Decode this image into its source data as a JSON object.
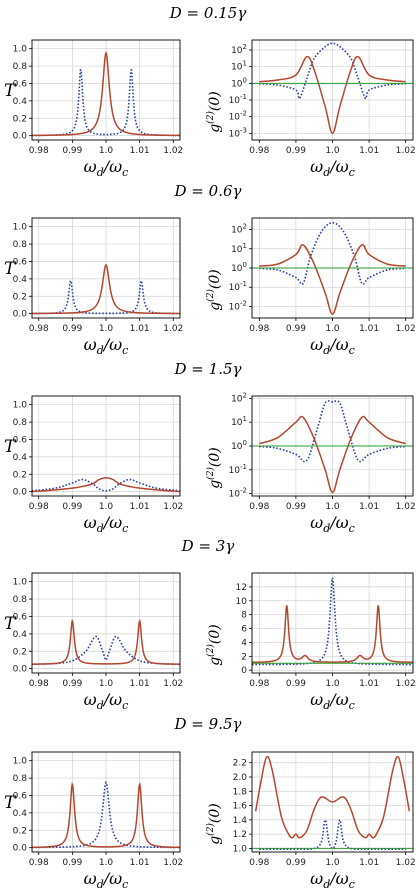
{
  "figure": {
    "colors": {
      "blue_dotted": "#2b43a6",
      "red": "#b5472e",
      "green": "#2a9a2a",
      "grid": "#d2d2d2",
      "frame": "#000000"
    },
    "panels_rows": [
      {
        "title": "D = 0.15γ"
      },
      {
        "title": "D = 0.6γ"
      },
      {
        "title": "D = 1.5γ"
      },
      {
        "title": "D = 3γ"
      },
      {
        "title": "D = 9.5γ"
      }
    ]
  },
  "chart_data": [
    {
      "row": 0,
      "side": "left",
      "type": "line",
      "title": "D = 0.15γ",
      "xlabel": "ωd/ωc",
      "ylabel": "T",
      "xlim": [
        0.978,
        1.022
      ],
      "ylim": [
        -0.05,
        1.1
      ],
      "xticks": [
        "0.98",
        "0.99",
        "1.0",
        "1.01",
        "1.02"
      ],
      "yticks": [
        "0.0",
        "0.2",
        "0.4",
        "0.6",
        "0.8",
        "1.0"
      ],
      "ytick_values": [
        0,
        0.2,
        0.4,
        0.6,
        0.8,
        1.0
      ],
      "series": [
        {
          "style": "dotted",
          "color": "blue",
          "peaks": [
            [
              0.9925,
              0.76,
              0.0007
            ],
            [
              1.0075,
              0.76,
              0.0007
            ]
          ],
          "base": 0.0
        },
        {
          "style": "solid",
          "color": "red",
          "peaks": [
            [
              1.0,
              0.95,
              0.0012
            ]
          ],
          "base": 0.0
        }
      ]
    },
    {
      "row": 0,
      "side": "right",
      "type": "line",
      "scale": "log",
      "title": "D = 0.15γ",
      "xlabel": "ωd/ωc",
      "ylabel": "g(2)(0)",
      "xlim": [
        0.978,
        1.022
      ],
      "ylim_exp": [
        -3.4,
        2.6
      ],
      "xticks": [
        "0.98",
        "0.99",
        "1.0",
        "1.01",
        "1.02"
      ],
      "yticks": [
        "10^2",
        "10^1",
        "10^0",
        "10^-1",
        "10^-2",
        "10^-3"
      ],
      "ytick_exps": [
        2,
        1,
        0,
        -1,
        -2,
        -3
      ],
      "series": [
        {
          "style": "dotted",
          "color": "blue",
          "x": [
            0.98,
            0.985,
            0.99,
            0.991,
            0.993,
            0.995,
            0.998,
            1.0,
            1.002,
            1.005,
            1.007,
            1.009,
            1.01,
            1.015,
            1.02
          ],
          "y_exp": [
            -0.02,
            -0.1,
            -0.4,
            -0.9,
            0.3,
            1.5,
            2.2,
            2.4,
            2.2,
            1.5,
            0.3,
            -0.9,
            -0.4,
            -0.1,
            -0.02
          ]
        },
        {
          "style": "solid",
          "color": "red",
          "x": [
            0.98,
            0.985,
            0.99,
            0.993,
            0.995,
            0.998,
            1.0,
            1.002,
            1.005,
            1.007,
            1.01,
            1.015,
            1.02
          ],
          "y_exp": [
            0.1,
            0.2,
            0.5,
            1.6,
            0.8,
            -1.4,
            -3.0,
            -1.4,
            0.8,
            1.6,
            0.5,
            0.2,
            0.1
          ]
        },
        {
          "style": "solid",
          "color": "green",
          "x": [
            0.978,
            1.022
          ],
          "y_exp": [
            0,
            0
          ]
        }
      ]
    },
    {
      "row": 1,
      "side": "left",
      "type": "line",
      "title": "D = 0.6γ",
      "xlabel": "ωd/ωc",
      "ylabel": "T",
      "xlim": [
        0.978,
        1.022
      ],
      "ylim": [
        -0.05,
        1.1
      ],
      "xticks": [
        "0.98",
        "0.99",
        "1.0",
        "1.01",
        "1.02"
      ],
      "yticks": [
        "0.0",
        "0.2",
        "0.4",
        "0.6",
        "0.8",
        "1.0"
      ],
      "ytick_values": [
        0,
        0.2,
        0.4,
        0.6,
        0.8,
        1.0
      ],
      "series": [
        {
          "style": "dotted",
          "color": "blue",
          "peaks": [
            [
              0.9895,
              0.38,
              0.0007
            ],
            [
              1.0105,
              0.38,
              0.0007
            ]
          ],
          "base": 0.0
        },
        {
          "style": "solid",
          "color": "red",
          "peaks": [
            [
              1.0,
              0.56,
              0.0013
            ]
          ],
          "base": 0.0
        }
      ]
    },
    {
      "row": 1,
      "side": "right",
      "type": "line",
      "scale": "log",
      "title": "D = 0.6γ",
      "xlabel": "ωd/ωc",
      "ylabel": "g(2)(0)",
      "xlim": [
        0.978,
        1.022
      ],
      "ylim_exp": [
        -2.6,
        2.6
      ],
      "xticks": [
        "0.98",
        "0.99",
        "1.0",
        "1.01",
        "1.02"
      ],
      "yticks": [
        "10^2",
        "10^1",
        "10^0",
        "10^-1",
        "10^-2"
      ],
      "ytick_exps": [
        2,
        1,
        0,
        -1,
        -2
      ],
      "series": [
        {
          "style": "dotted",
          "color": "blue",
          "x": [
            0.98,
            0.985,
            0.99,
            0.992,
            0.994,
            0.997,
            1.0,
            1.003,
            1.006,
            1.008,
            1.01,
            1.015,
            1.02
          ],
          "y_exp": [
            -0.02,
            -0.1,
            -0.5,
            -0.8,
            0.6,
            1.9,
            2.35,
            1.9,
            0.6,
            -0.8,
            -0.5,
            -0.1,
            -0.02
          ]
        },
        {
          "style": "solid",
          "color": "red",
          "x": [
            0.98,
            0.985,
            0.99,
            0.992,
            0.995,
            0.998,
            1.0,
            1.002,
            1.005,
            1.008,
            1.01,
            1.015,
            1.02
          ],
          "y_exp": [
            0.1,
            0.2,
            0.7,
            1.2,
            0.2,
            -1.3,
            -2.4,
            -1.3,
            0.2,
            1.2,
            0.7,
            0.2,
            0.1
          ]
        },
        {
          "style": "solid",
          "color": "green",
          "x": [
            0.978,
            1.022
          ],
          "y_exp": [
            0,
            0
          ]
        }
      ]
    },
    {
      "row": 2,
      "side": "left",
      "type": "line",
      "title": "D = 1.5γ",
      "xlabel": "ωd/ωc",
      "ylabel": "T",
      "xlim": [
        0.978,
        1.022
      ],
      "ylim": [
        -0.05,
        1.1
      ],
      "xticks": [
        "0.98",
        "0.99",
        "1.0",
        "1.01",
        "1.02"
      ],
      "yticks": [
        "0.0",
        "0.2",
        "0.4",
        "0.6",
        "0.8",
        "1.0"
      ],
      "ytick_values": [
        0,
        0.2,
        0.4,
        0.6,
        0.8,
        1.0
      ],
      "series": [
        {
          "style": "dotted",
          "color": "blue",
          "x": [
            0.978,
            0.985,
            0.99,
            0.993,
            0.996,
            0.998,
            1.0,
            1.002,
            1.004,
            1.007,
            1.01,
            1.015,
            1.022
          ],
          "y": [
            0.01,
            0.04,
            0.1,
            0.14,
            0.09,
            0.03,
            0.01,
            0.03,
            0.09,
            0.14,
            0.1,
            0.04,
            0.01
          ]
        },
        {
          "style": "solid",
          "color": "red",
          "x": [
            0.978,
            0.985,
            0.99,
            0.993,
            0.996,
            0.998,
            1.0,
            1.002,
            1.004,
            1.007,
            1.01,
            1.015,
            1.022
          ],
          "y": [
            0.0,
            0.02,
            0.04,
            0.06,
            0.09,
            0.14,
            0.16,
            0.14,
            0.09,
            0.06,
            0.04,
            0.02,
            0.0
          ]
        }
      ]
    },
    {
      "row": 2,
      "side": "right",
      "type": "line",
      "scale": "log",
      "title": "D = 1.5γ",
      "xlabel": "ωd/ωc",
      "ylabel": "g(2)(0)",
      "xlim": [
        0.978,
        1.022
      ],
      "ylim_exp": [
        -2.1,
        2.1
      ],
      "xticks": [
        "0.98",
        "0.99",
        "1.0",
        "1.01",
        "1.02"
      ],
      "yticks": [
        "10^2",
        "10^1",
        "10^0",
        "10^-1",
        "10^-2"
      ],
      "ytick_exps": [
        2,
        1,
        0,
        -1,
        -2
      ],
      "series": [
        {
          "style": "dotted",
          "color": "blue",
          "x": [
            0.98,
            0.985,
            0.99,
            0.993,
            0.996,
            0.998,
            1.0,
            1.002,
            1.004,
            1.007,
            1.01,
            1.015,
            1.02
          ],
          "y_exp": [
            -0.02,
            -0.1,
            -0.35,
            -0.6,
            0.8,
            1.8,
            1.85,
            1.8,
            0.8,
            -0.6,
            -0.35,
            -0.1,
            -0.02
          ]
        },
        {
          "style": "solid",
          "color": "red",
          "x": [
            0.98,
            0.985,
            0.99,
            0.992,
            0.995,
            0.998,
            1.0,
            1.002,
            1.005,
            1.008,
            1.01,
            1.015,
            1.02
          ],
          "y_exp": [
            0.1,
            0.35,
            1.0,
            1.2,
            0.3,
            -1.0,
            -1.95,
            -1.0,
            0.3,
            1.2,
            1.0,
            0.35,
            0.1
          ]
        },
        {
          "style": "solid",
          "color": "green",
          "x": [
            0.978,
            1.022
          ],
          "y_exp": [
            0,
            0
          ]
        }
      ]
    },
    {
      "row": 3,
      "side": "left",
      "type": "line",
      "title": "D = 3γ",
      "xlabel": "ωd/ωc",
      "ylabel": "T",
      "xlim": [
        0.978,
        1.022
      ],
      "ylim": [
        -0.05,
        1.1
      ],
      "xticks": [
        "0.98",
        "0.99",
        "1.0",
        "1.01",
        "1.02"
      ],
      "yticks": [
        "0.0",
        "0.2",
        "0.4",
        "0.6",
        "0.8",
        "1.0"
      ],
      "ytick_values": [
        0,
        0.2,
        0.4,
        0.6,
        0.8,
        1.0
      ],
      "series": [
        {
          "style": "dotted",
          "color": "blue",
          "x": [
            0.978,
            0.985,
            0.99,
            0.994,
            0.997,
            0.999,
            1.0,
            1.001,
            1.003,
            1.006,
            1.01,
            1.015,
            1.022
          ],
          "y": [
            0.05,
            0.06,
            0.09,
            0.2,
            0.37,
            0.2,
            0.1,
            0.2,
            0.37,
            0.2,
            0.09,
            0.06,
            0.05
          ]
        },
        {
          "style": "solid",
          "color": "red",
          "peaks": [
            [
              0.99,
              0.5,
              0.0007
            ],
            [
              1.01,
              0.5,
              0.0007
            ]
          ],
          "base": 0.05
        }
      ]
    },
    {
      "row": 3,
      "side": "right",
      "type": "line",
      "scale": "linear",
      "title": "D = 3γ",
      "xlabel": "ωd/ωc",
      "ylabel": "g(2)(0)",
      "xlim": [
        0.978,
        1.022
      ],
      "ylim": [
        -0.4,
        14.0
      ],
      "xticks": [
        "0.98",
        "0.99",
        "1.0",
        "1.01",
        "1.02"
      ],
      "yticks": [
        "0",
        "2",
        "4",
        "6",
        "8",
        "10",
        "12"
      ],
      "ytick_values": [
        0,
        2,
        4,
        6,
        8,
        10,
        12
      ],
      "series": [
        {
          "style": "dotted",
          "color": "blue",
          "peaks": [
            [
              1.0,
              12.5,
              0.0008
            ]
          ],
          "base": 0.8
        },
        {
          "style": "solid",
          "color": "red",
          "peaks": [
            [
              0.9875,
              8.2,
              0.0006
            ],
            [
              1.0125,
              8.2,
              0.0006
            ],
            [
              0.9925,
              0.9,
              0.001
            ],
            [
              1.0075,
              0.9,
              0.001
            ]
          ],
          "base": 1.1
        },
        {
          "style": "solid",
          "color": "green",
          "x": [
            0.978,
            1.022
          ],
          "y": [
            1,
            1
          ]
        }
      ]
    },
    {
      "row": 4,
      "side": "left",
      "type": "line",
      "title": "D = 9.5γ",
      "xlabel": "ωd/ωc",
      "ylabel": "T",
      "xlim": [
        0.978,
        1.022
      ],
      "ylim": [
        -0.05,
        1.1
      ],
      "xticks": [
        "0.98",
        "0.99",
        "1.0",
        "1.01",
        "1.02"
      ],
      "yticks": [
        "0.0",
        "0.2",
        "0.4",
        "0.6",
        "0.8",
        "1.0"
      ],
      "ytick_values": [
        0,
        0.2,
        0.4,
        0.6,
        0.8,
        1.0
      ],
      "series": [
        {
          "style": "dotted",
          "color": "blue",
          "peaks": [
            [
              1.0,
              0.75,
              0.0012
            ]
          ],
          "base": 0.0
        },
        {
          "style": "solid",
          "color": "red",
          "peaks": [
            [
              0.99,
              0.73,
              0.0008
            ],
            [
              1.01,
              0.73,
              0.0008
            ]
          ],
          "base": 0.0
        }
      ]
    },
    {
      "row": 4,
      "side": "right",
      "type": "line",
      "scale": "linear",
      "title": "D = 9.5γ",
      "xlabel": "ωd/ωc",
      "ylabel": "g(2)(0)",
      "xlim": [
        0.978,
        1.022
      ],
      "ylim": [
        0.95,
        2.35
      ],
      "xticks": [
        "0.98",
        "0.99",
        "1.0",
        "1.01",
        "1.02"
      ],
      "yticks": [
        "1.0",
        "1.2",
        "1.4",
        "1.6",
        "1.8",
        "2.0",
        "2.2"
      ],
      "ytick_values": [
        1.0,
        1.2,
        1.4,
        1.6,
        1.8,
        2.0,
        2.2
      ],
      "series": [
        {
          "style": "dotted",
          "color": "blue",
          "x": [
            0.98,
            0.99,
            0.995,
            0.997,
            0.998,
            0.999,
            1.0,
            1.001,
            1.002,
            1.003,
            1.005,
            1.01,
            1.02
          ],
          "y": [
            0.99,
            0.99,
            1.0,
            1.1,
            1.4,
            1.1,
            1.0,
            1.1,
            1.4,
            1.1,
            1.0,
            0.99,
            0.99
          ]
        },
        {
          "style": "solid",
          "color": "red",
          "x": [
            0.979,
            0.9805,
            0.982,
            0.9835,
            0.986,
            0.988,
            0.989,
            0.99,
            0.991,
            0.993,
            0.995,
            0.997,
            1.0,
            1.003,
            1.005,
            1.007,
            1.009,
            1.01,
            1.011,
            1.012,
            1.014,
            1.0165,
            1.018,
            1.0195,
            1.021
          ],
          "y": [
            1.52,
            1.95,
            2.28,
            2.1,
            1.45,
            1.2,
            1.15,
            1.2,
            1.15,
            1.25,
            1.55,
            1.72,
            1.65,
            1.72,
            1.55,
            1.25,
            1.15,
            1.2,
            1.15,
            1.2,
            1.45,
            2.1,
            2.28,
            1.95,
            1.52
          ]
        },
        {
          "style": "solid",
          "color": "green",
          "x": [
            0.978,
            1.022
          ],
          "y": [
            1,
            1
          ]
        }
      ]
    }
  ]
}
